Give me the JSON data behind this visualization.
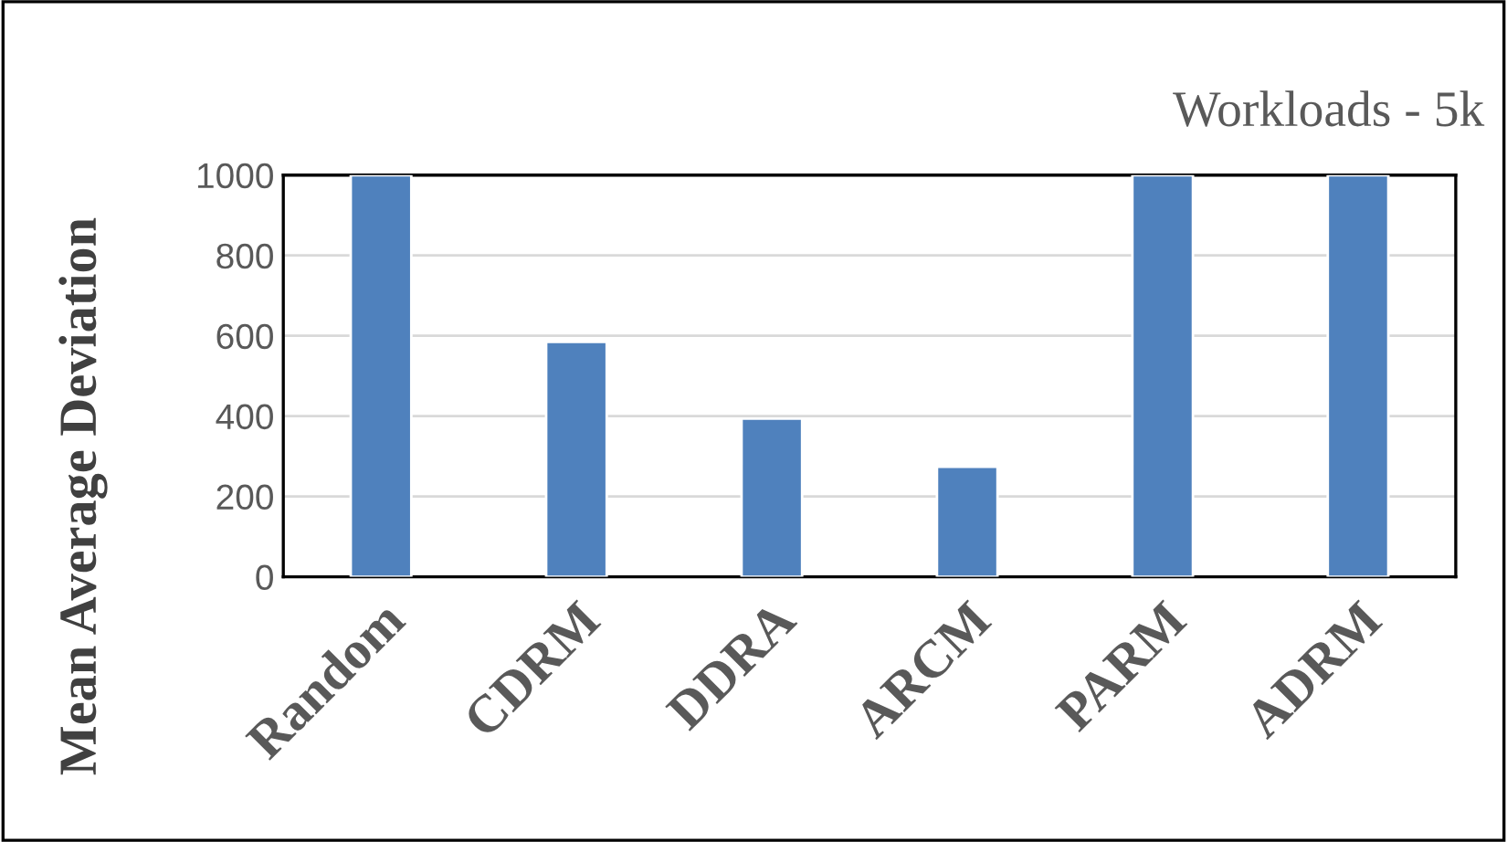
{
  "chart_data": {
    "type": "bar",
    "title": "Workloads - 5k",
    "ylabel": "Mean Average Deviation",
    "categories": [
      "Random",
      "CDRM",
      "DDRA",
      "ARCM",
      "PARM",
      "ADRM"
    ],
    "values": [
      1000,
      585,
      394,
      274,
      1000,
      1000
    ],
    "color": "#4f81bd",
    "ylim": [
      0,
      1000
    ],
    "yticks": [
      0,
      200,
      400,
      600,
      800,
      1000
    ],
    "grid": "y",
    "legend": false
  }
}
